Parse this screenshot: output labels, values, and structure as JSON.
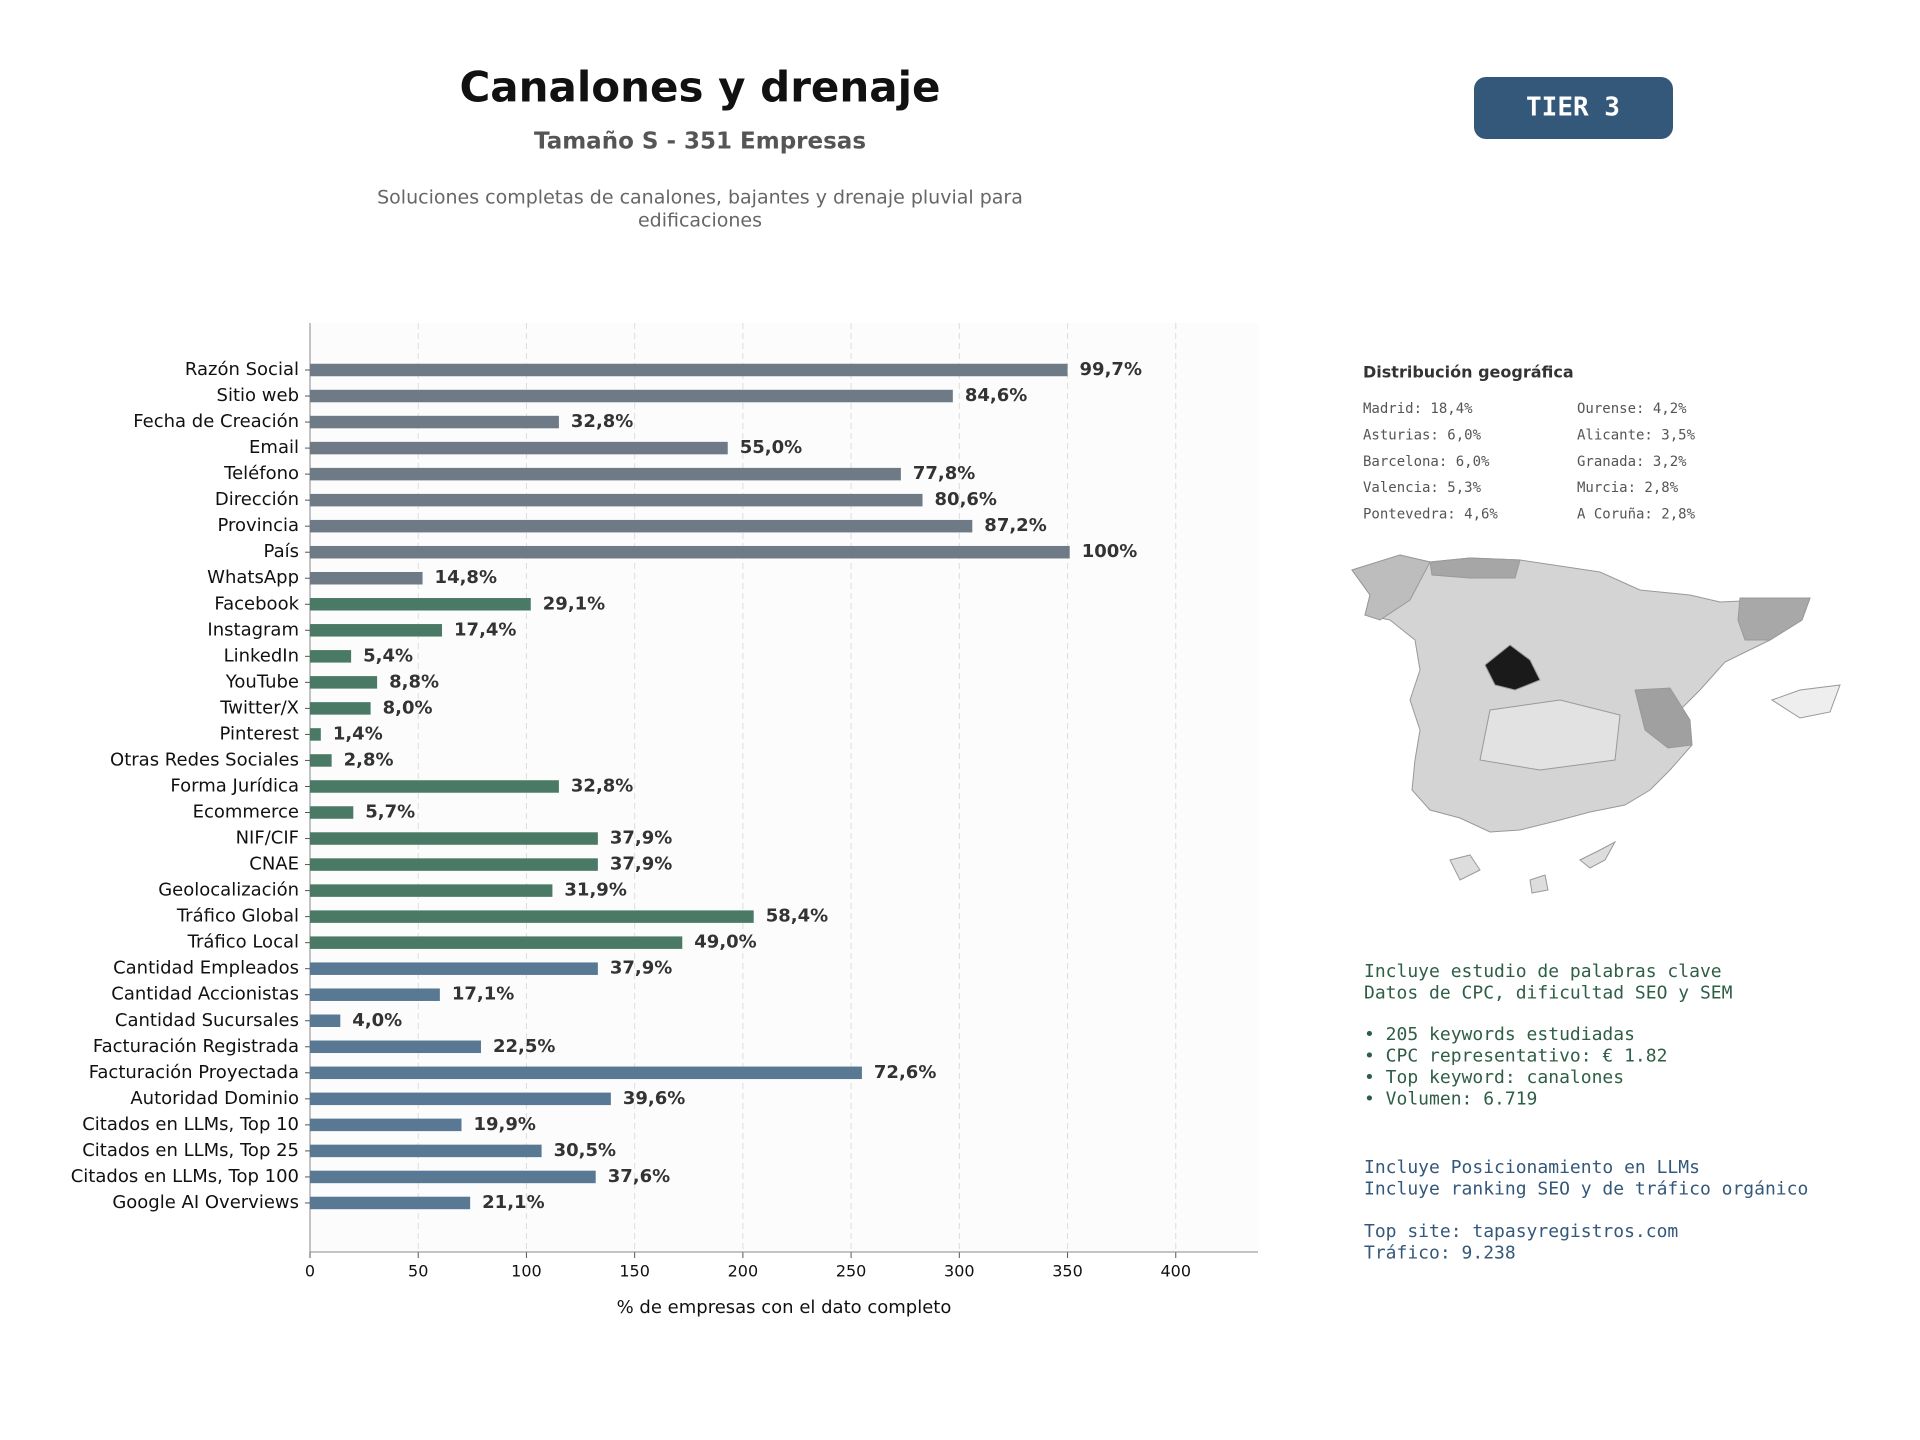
{
  "chart_data": {
    "type": "bar",
    "orientation": "horizontal",
    "title": "Canalones y drenaje",
    "subtitle": "Tamaño S - 351 Empresas",
    "description": [
      "Soluciones completas de canalones, bajantes y drenaje pluvial para",
      "edificaciones"
    ],
    "xlabel": "% de empresas con el dato completo",
    "categories": [
      "Razón Social",
      "Sitio web",
      "Fecha de Creación",
      "Email",
      "Teléfono",
      "Dirección",
      "Provincia",
      "País",
      "WhatsApp",
      "Facebook",
      "Instagram",
      "LinkedIn",
      "YouTube",
      "Twitter/X",
      "Pinterest",
      "Otras Redes Sociales",
      "Forma Jurídica",
      "Ecommerce",
      "NIF/CIF",
      "CNAE",
      "Geolocalización",
      "Tráfico Global",
      "Tráfico Local",
      "Cantidad Empleados",
      "Cantidad Accionistas",
      "Cantidad Sucursales",
      "Facturación Registrada",
      "Facturación Proyectada",
      "Autoridad Dominio",
      "Citados en LLMs, Top 10",
      "Citados en LLMs, Top 25",
      "Citados en LLMs, Top 100",
      "Google AI Overviews"
    ],
    "values": [
      350,
      297,
      115,
      193,
      273,
      283,
      306,
      351,
      52,
      102,
      61,
      19,
      31,
      28,
      5,
      10,
      115,
      20,
      133,
      133,
      112,
      205,
      172,
      133,
      60,
      14,
      79,
      255,
      139,
      70,
      107,
      132,
      74
    ],
    "value_labels": [
      "99,7%",
      "84,6%",
      "32,8%",
      "55,0%",
      "77,8%",
      "80,6%",
      "87,2%",
      "100%",
      "14,8%",
      "29,1%",
      "17,4%",
      "5,4%",
      "8,8%",
      "8,0%",
      "1,4%",
      "2,8%",
      "32,8%",
      "5,7%",
      "37,9%",
      "37,9%",
      "31,9%",
      "58,4%",
      "49,0%",
      "37,9%",
      "17,1%",
      "4,0%",
      "22,5%",
      "72,6%",
      "39,6%",
      "19,9%",
      "30,5%",
      "37,6%",
      "21,1%"
    ],
    "colors": [
      "#6e7a85",
      "#6e7a85",
      "#6e7a85",
      "#6e7a85",
      "#6e7a85",
      "#6e7a85",
      "#6e7a85",
      "#6e7a85",
      "#6e7a85",
      "#4a7a65",
      "#4a7a65",
      "#4a7a65",
      "#4a7a65",
      "#4a7a65",
      "#4a7a65",
      "#4a7a65",
      "#4a7a65",
      "#4a7a65",
      "#4a7a65",
      "#4a7a65",
      "#4a7a65",
      "#4a7a65",
      "#4a7a65",
      "#587894",
      "#587894",
      "#587894",
      "#587894",
      "#587894",
      "#587894",
      "#587894",
      "#587894",
      "#587894",
      "#587894"
    ],
    "xlim": [
      0,
      438
    ],
    "xticks": [
      0,
      50,
      100,
      150,
      200,
      250,
      300,
      350,
      400
    ],
    "grid": true
  },
  "tier_badge": "TIER 3",
  "geo": {
    "title": "Distribución geográfica",
    "col1": [
      "Madrid: 18,4%",
      "Asturias: 6,0%",
      "Barcelona: 6,0%",
      "Valencia: 5,3%",
      "Pontevedra: 4,6%"
    ],
    "col2": [
      "Ourense: 4,2%",
      "Alicante: 3,5%",
      "Granada: 3,2%",
      "Murcia: 2,8%",
      "A Coruña: 2,8%"
    ]
  },
  "keywords": {
    "intro": [
      "Incluye estudio de palabras clave",
      "Datos de CPC, dificultad SEO y SEM"
    ],
    "bullets": [
      "• 205 keywords estudiadas",
      "• CPC representativo: € 1.82",
      "• Top keyword: canalones",
      "• Volumen: 6.719"
    ]
  },
  "llm": {
    "intro": [
      "Incluye Posicionamiento en LLMs",
      "Incluye ranking SEO y de tráfico orgánico"
    ],
    "details": [
      "Top site: tapasyregistros.com",
      "Tráfico: 9.238"
    ]
  }
}
